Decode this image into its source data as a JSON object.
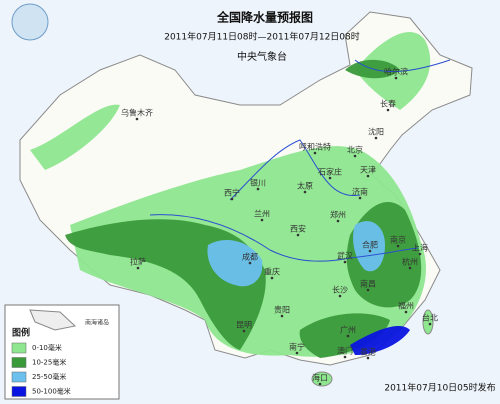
{
  "header": {
    "title": "全国降水量预报图",
    "subtitle": "2011年07月11日08时—2011年07月12日08时",
    "agency": "中央气象台"
  },
  "legend": {
    "title": "图例",
    "inset_label": "南海诸岛",
    "items": [
      {
        "label": "0-10毫米",
        "color": "#8ee68e"
      },
      {
        "label": "10-25毫米",
        "color": "#3a9a3a"
      },
      {
        "label": "25-50毫米",
        "color": "#6cc0ee"
      },
      {
        "label": "50-100毫米",
        "color": "#0a14e0"
      }
    ]
  },
  "cities": [
    "乌鲁木齐",
    "哈尔滨",
    "长春",
    "沈阳",
    "呼和浩特",
    "北京",
    "天津",
    "石家庄",
    "太原",
    "银川",
    "济南",
    "西宁",
    "兰州",
    "郑州",
    "西安",
    "合肥",
    "南京",
    "上海",
    "拉萨",
    "成都",
    "武汉",
    "杭州",
    "重庆",
    "长沙",
    "南昌",
    "贵阳",
    "福州",
    "昆明",
    "台北",
    "南宁",
    "广州",
    "香港",
    "澳门",
    "海口"
  ],
  "footer": "2011年07月10日05时发布"
}
